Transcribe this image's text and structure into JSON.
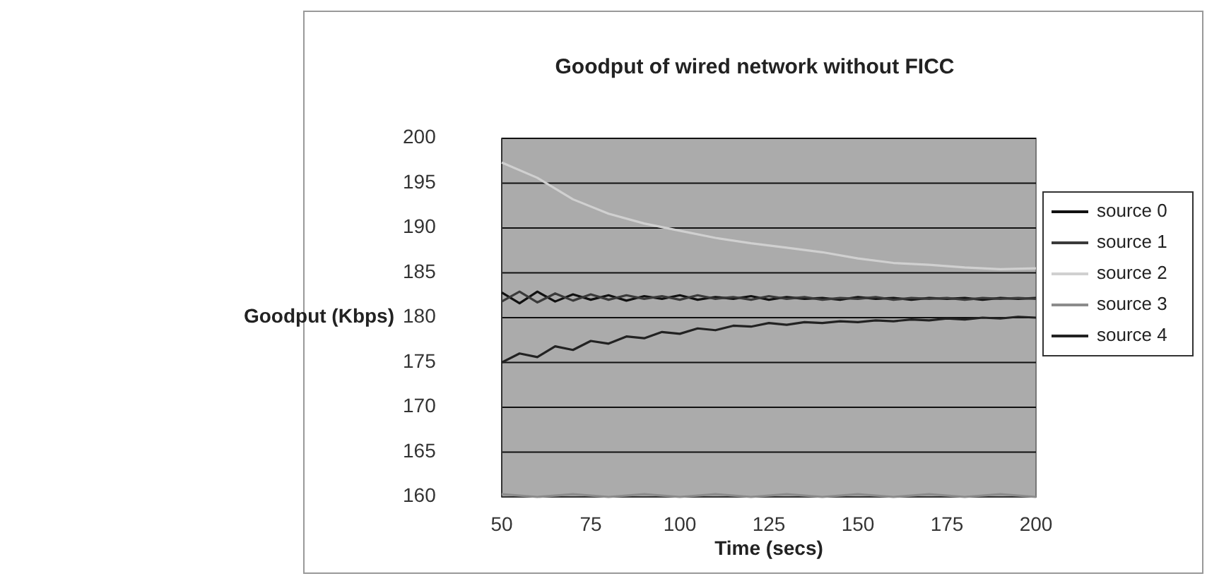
{
  "chart_data": {
    "type": "line",
    "title": "Goodput of wired network without FICC",
    "xlabel": "Time (secs)",
    "ylabel": "Goodput (Kbps)",
    "xlim": [
      50,
      200
    ],
    "xticks": [
      50,
      75,
      100,
      125,
      150,
      175,
      200
    ],
    "ylim": [
      160,
      200
    ],
    "yticks": [
      160,
      165,
      170,
      175,
      180,
      185,
      190,
      195,
      200
    ],
    "grid": "y",
    "legend": "right",
    "line_style": "solid",
    "series": [
      {
        "name": "source 0",
        "color": "#111111",
        "x": [
          50,
          55,
          60,
          65,
          70,
          75,
          80,
          85,
          90,
          95,
          100,
          105,
          110,
          115,
          120,
          125,
          130,
          135,
          140,
          145,
          150,
          155,
          160,
          165,
          170,
          175,
          180,
          185,
          190,
          195,
          200
        ],
        "values": [
          182.8,
          181.6,
          182.9,
          181.8,
          182.6,
          182.0,
          182.5,
          181.9,
          182.4,
          182.1,
          182.5,
          182.0,
          182.3,
          182.1,
          182.4,
          182.0,
          182.3,
          182.1,
          182.2,
          182.0,
          182.3,
          182.1,
          182.2,
          182.0,
          182.2,
          182.1,
          182.2,
          182.0,
          182.2,
          182.1,
          182.2
        ]
      },
      {
        "name": "source 1",
        "color": "#3a3a3a",
        "x": [
          50,
          55,
          60,
          65,
          70,
          75,
          80,
          85,
          90,
          95,
          100,
          105,
          110,
          115,
          120,
          125,
          130,
          135,
          140,
          145,
          150,
          155,
          160,
          165,
          170,
          175,
          180,
          185,
          190,
          195,
          200
        ],
        "values": [
          181.8,
          182.9,
          181.7,
          182.7,
          181.9,
          182.6,
          182.0,
          182.5,
          182.1,
          182.4,
          182.0,
          182.5,
          182.1,
          182.3,
          182.0,
          182.4,
          182.1,
          182.3,
          182.0,
          182.2,
          182.1,
          182.3,
          182.0,
          182.2,
          182.1,
          182.2,
          182.0,
          182.2,
          182.1,
          182.2,
          182.1
        ]
      },
      {
        "name": "source 2",
        "color": "#d0d0d0",
        "x": [
          50,
          60,
          70,
          80,
          90,
          100,
          110,
          120,
          130,
          140,
          150,
          160,
          170,
          180,
          190,
          200
        ],
        "values": [
          197.3,
          195.6,
          193.2,
          191.6,
          190.5,
          189.7,
          188.9,
          188.3,
          187.8,
          187.3,
          186.6,
          186.1,
          185.9,
          185.6,
          185.4,
          185.5
        ]
      },
      {
        "name": "source 3",
        "color": "#8c8c8c",
        "x": [
          50,
          60,
          70,
          80,
          90,
          100,
          110,
          120,
          130,
          140,
          150,
          160,
          170,
          180,
          190,
          200
        ],
        "values": [
          160.3,
          160.0,
          160.3,
          160.0,
          160.3,
          160.0,
          160.3,
          160.0,
          160.3,
          160.0,
          160.3,
          160.0,
          160.3,
          160.0,
          160.3,
          160.0
        ]
      },
      {
        "name": "source 4",
        "color": "#222222",
        "x": [
          50,
          55,
          60,
          65,
          70,
          75,
          80,
          85,
          90,
          95,
          100,
          105,
          110,
          115,
          120,
          125,
          130,
          135,
          140,
          145,
          150,
          155,
          160,
          165,
          170,
          175,
          180,
          185,
          190,
          195,
          200
        ],
        "values": [
          175.0,
          176.0,
          175.6,
          176.8,
          176.4,
          177.4,
          177.1,
          177.9,
          177.7,
          178.4,
          178.2,
          178.8,
          178.6,
          179.1,
          179.0,
          179.4,
          179.2,
          179.5,
          179.4,
          179.6,
          179.5,
          179.7,
          179.6,
          179.8,
          179.7,
          179.9,
          179.8,
          180.0,
          179.9,
          180.1,
          180.0
        ]
      }
    ]
  }
}
